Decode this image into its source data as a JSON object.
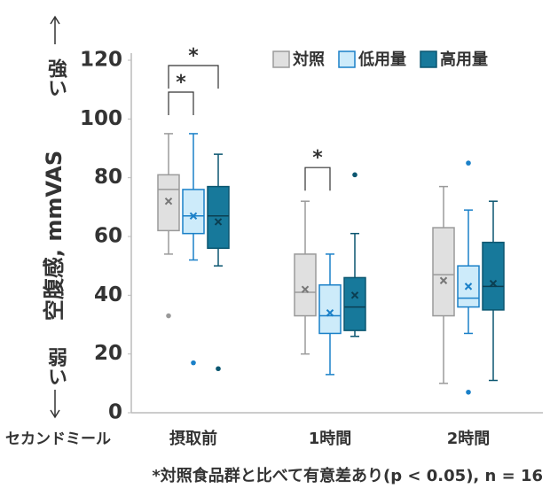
{
  "chart_data": {
    "type": "box",
    "ylabel": "空腹感, mmVAS",
    "strong_label": "強い",
    "weak_label": "弱い",
    "xlabel": "セカンドミール",
    "footnote": "*対照食品群と比べて有意差あり(p < 0.05), n = 16",
    "categories": [
      "摂取前",
      "1時間",
      "2時間"
    ],
    "ylim": [
      0,
      120
    ],
    "yticks": [
      0,
      20,
      40,
      60,
      80,
      100,
      120
    ],
    "grid": false,
    "legend": "top-right",
    "series": [
      {
        "name": "対照",
        "color": "#e0e0e0",
        "edge": "#9a9a9a",
        "boxes": [
          {
            "min": 54,
            "q1": 62,
            "median": 76,
            "q3": 81,
            "max": 95,
            "mean": 72,
            "outliers": [
              33
            ]
          },
          {
            "min": 20,
            "q1": 33,
            "median": 41,
            "q3": 54,
            "max": 72,
            "mean": 42,
            "outliers": []
          },
          {
            "min": 10,
            "q1": 33,
            "median": 47,
            "q3": 63,
            "max": 77,
            "mean": 45,
            "outliers": []
          }
        ]
      },
      {
        "name": "低用量",
        "color": "#cdebfa",
        "edge": "#1a80c8",
        "boxes": [
          {
            "min": 52,
            "q1": 61,
            "median": 67,
            "q3": 76,
            "max": 95,
            "mean": 67,
            "outliers": [
              17
            ]
          },
          {
            "min": 13,
            "q1": 27,
            "median": 33,
            "q3": 43.5,
            "max": 54,
            "mean": 34,
            "outliers": []
          },
          {
            "min": 27,
            "q1": 36,
            "median": 39,
            "q3": 50,
            "max": 69,
            "mean": 43,
            "outliers": [
              85,
              7
            ]
          }
        ]
      },
      {
        "name": "高用量",
        "color": "#17799b",
        "edge": "#0b5670",
        "boxes": [
          {
            "min": 50,
            "q1": 56,
            "median": 67,
            "q3": 77,
            "max": 88,
            "mean": 65,
            "outliers": [
              15
            ]
          },
          {
            "min": 26,
            "q1": 28,
            "median": 36,
            "q3": 46,
            "max": 61,
            "mean": 40,
            "outliers": [
              81
            ]
          },
          {
            "min": 11,
            "q1": 35,
            "median": 43,
            "q3": 58,
            "max": 72,
            "mean": 44,
            "outliers": []
          }
        ]
      }
    ],
    "significance": [
      {
        "category": "摂取前",
        "pair": [
          "対照",
          "低用量"
        ],
        "label": "*"
      },
      {
        "category": "摂取前",
        "pair": [
          "対照",
          "高用量"
        ],
        "label": "*"
      },
      {
        "category": "1時間",
        "pair": [
          "対照",
          "低用量"
        ],
        "label": "*"
      }
    ]
  }
}
